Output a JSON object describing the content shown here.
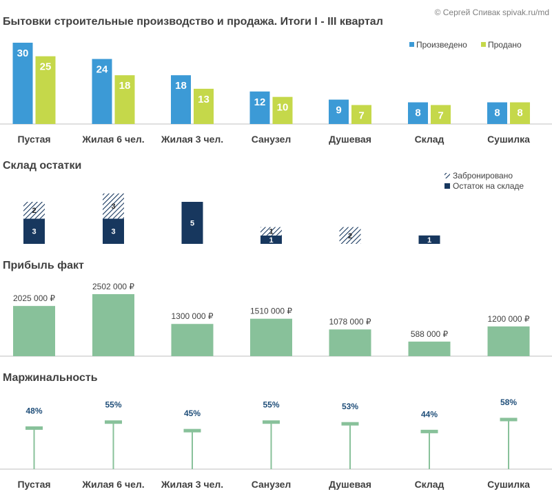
{
  "header": {
    "title": "Бытовки строительные производство  и продажа.  Итоги I - III квартал",
    "credit": "© Сергей Спивак   spivak.ru/md"
  },
  "colors": {
    "produced": "#3c9ad6",
    "sold": "#c5d84a",
    "stock": "#17375e",
    "reserved_hatch": "#17375e",
    "profit": "#88c19a",
    "margin": "#88c19a",
    "margin_label": "#1f4e79",
    "axis": "#bfbfbf"
  },
  "sections": {
    "stock_title": "Склад остатки",
    "profit_title": "Прибыль факт",
    "margin_title": "Маржинальность"
  },
  "chart_data": [
    {
      "id": "production",
      "type": "bar",
      "title": "Бытовки строительные производство  и продажа.  Итоги I - III квартал",
      "categories": [
        "Пустая",
        "Жилая 6 чел.",
        "Жилая 3 чел.",
        "Санузел",
        "Душевая",
        "Склад",
        "Сушилка"
      ],
      "series": [
        {
          "name": "Произведено",
          "values": [
            30,
            24,
            18,
            12,
            9,
            8,
            8
          ]
        },
        {
          "name": "Продано",
          "values": [
            25,
            18,
            13,
            10,
            7,
            7,
            8
          ]
        }
      ],
      "ylim": [
        0,
        30
      ],
      "legend": "top-right",
      "grid": false
    },
    {
      "id": "stock",
      "type": "bar",
      "stacked": true,
      "title": "Склад остатки",
      "categories": [
        "Пустая",
        "Жилая 6 чел.",
        "Жилая 3 чел.",
        "Санузел",
        "Душевая",
        "Склад",
        "Сушилка"
      ],
      "series": [
        {
          "name": "Остаток на складе",
          "values": [
            3,
            3,
            5,
            1,
            0,
            1,
            0
          ]
        },
        {
          "name": "Забронировано",
          "values": [
            2,
            3,
            0,
            1,
            2,
            0,
            0
          ]
        }
      ],
      "ylim": [
        0,
        6
      ],
      "legend": "top-right",
      "grid": false
    },
    {
      "id": "profit",
      "type": "bar",
      "title": "Прибыль факт",
      "categories": [
        "Пустая",
        "Жилая 6 чел.",
        "Жилая 3 чел.",
        "Санузел",
        "Душевая",
        "Склад",
        "Сушилка"
      ],
      "values": [
        2025000,
        2502000,
        1300000,
        1510000,
        1078000,
        588000,
        1200000
      ],
      "value_labels": [
        "2025 000 ₽",
        "2502 000 ₽",
        "1300 000 ₽",
        "1510 000 ₽",
        "1078 000 ₽",
        "588 000 ₽",
        "1200 000 ₽"
      ],
      "ylim": [
        0,
        2502000
      ],
      "grid": false
    },
    {
      "id": "margin",
      "type": "bar",
      "style": "lollipop",
      "title": "Маржинальность",
      "categories": [
        "Пустая",
        "Жилая 6 чел.",
        "Жилая 3 чел.",
        "Санузел",
        "Душевая",
        "Склад",
        "Сушилка"
      ],
      "values": [
        48,
        55,
        45,
        55,
        53,
        44,
        58
      ],
      "value_labels": [
        "48%",
        "55%",
        "45%",
        "55%",
        "53%",
        "44%",
        "58%"
      ],
      "ylim": [
        0,
        58
      ],
      "grid": false
    }
  ]
}
